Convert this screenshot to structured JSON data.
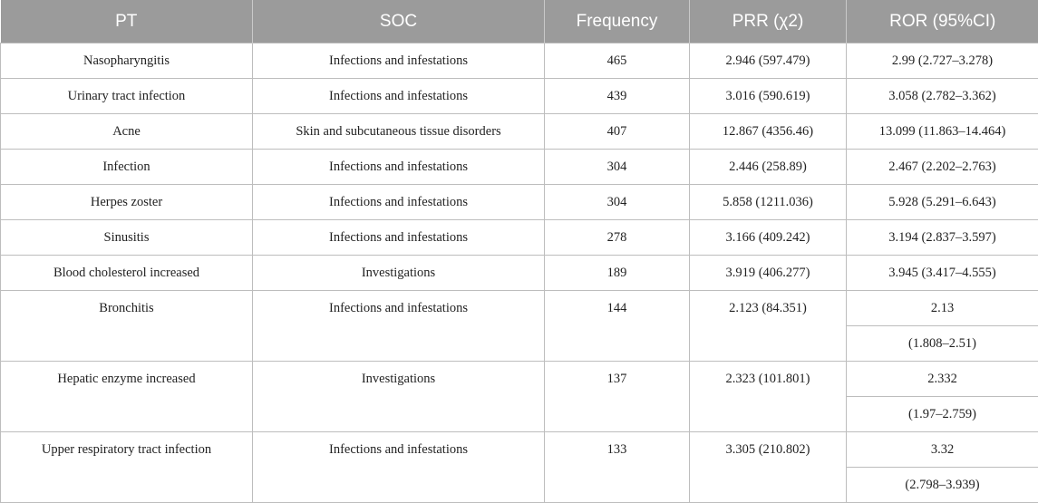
{
  "headers": [
    "PT",
    "SOC",
    "Frequency",
    "PRR (χ2)",
    "ROR (95%CI)"
  ],
  "rows": [
    {
      "pt": "Nasopharyngitis",
      "soc": "Infections and infestations",
      "freq": "465",
      "prr": "2.946 (597.479)",
      "ror": "2.99 (2.727–3.278)"
    },
    {
      "pt": "Urinary tract infection",
      "soc": "Infections and infestations",
      "freq": "439",
      "prr": "3.016 (590.619)",
      "ror": "3.058 (2.782–3.362)"
    },
    {
      "pt": "Acne",
      "soc": "Skin and subcutaneous tissue disorders",
      "freq": "407",
      "prr": "12.867 (4356.46)",
      "ror": "13.099 (11.863–14.464)"
    },
    {
      "pt": "Infection",
      "soc": "Infections and infestations",
      "freq": "304",
      "prr": "2.446 (258.89)",
      "ror": "2.467 (2.202–2.763)"
    },
    {
      "pt": "Herpes zoster",
      "soc": "Infections and infestations",
      "freq": "304",
      "prr": "5.858 (1211.036)",
      "ror": "5.928 (5.291–6.643)"
    },
    {
      "pt": "Sinusitis",
      "soc": "Infections and infestations",
      "freq": "278",
      "prr": "3.166 (409.242)",
      "ror": "3.194 (2.837–3.597)"
    },
    {
      "pt": "Blood cholesterol increased",
      "soc": "Investigations",
      "freq": "189",
      "prr": "3.919 (406.277)",
      "ror": "3.945 (3.417–4.555)"
    },
    {
      "pt": "Bronchitis",
      "soc": "Infections and infestations",
      "freq": "144",
      "prr": "2.123 (84.351)",
      "ror": "2.13",
      "ror_ci": "(1.808–2.51)"
    },
    {
      "pt": "Hepatic enzyme increased",
      "soc": "Investigations",
      "freq": "137",
      "prr": "2.323 (101.801)",
      "ror": "2.332",
      "ror_ci": "(1.97–2.759)"
    },
    {
      "pt": "Upper respiratory tract infection",
      "soc": "Infections and infestations",
      "freq": "133",
      "prr": "3.305 (210.802)",
      "ror": "3.32",
      "ror_ci": "(2.798–3.939)"
    }
  ]
}
